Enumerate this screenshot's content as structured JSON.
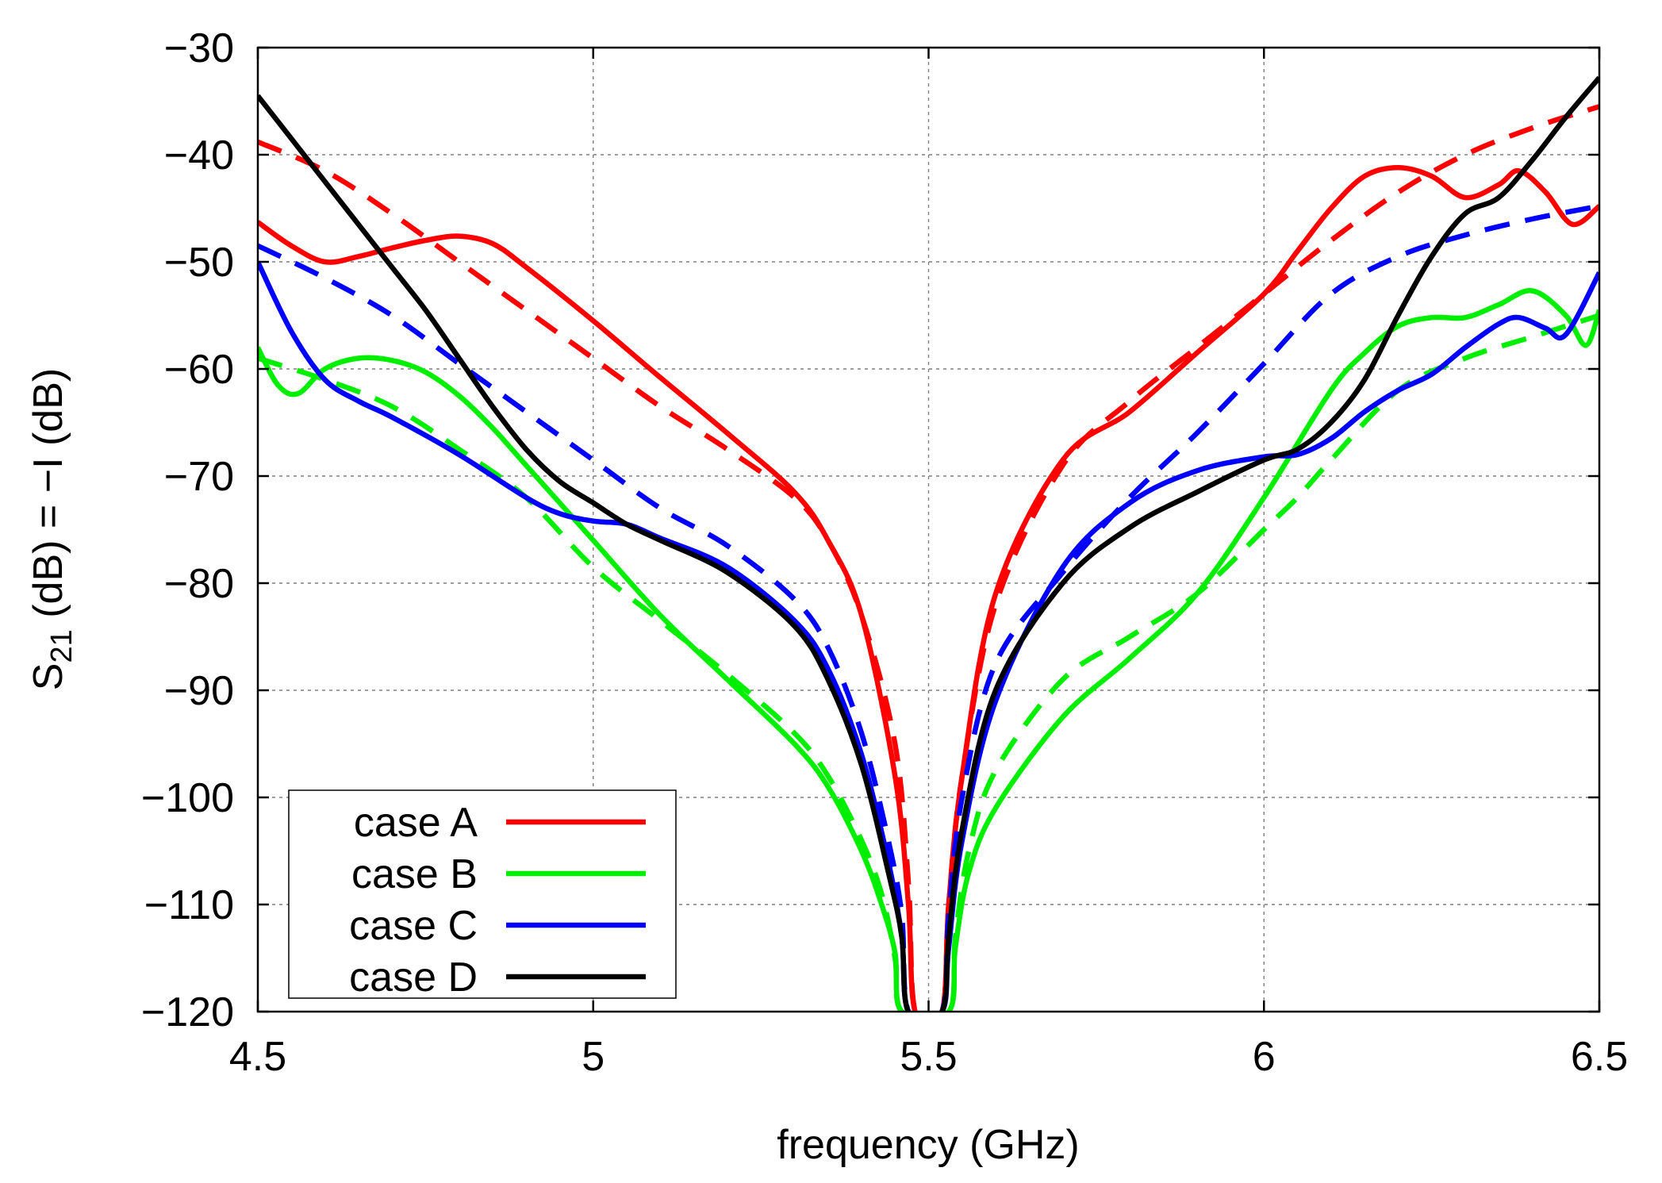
{
  "chart_data": {
    "type": "line",
    "xlabel": "frequency (GHz)",
    "ylabel": {
      "main": "S",
      "sub": "21",
      "rest": " (dB) = −I (dB)"
    },
    "xlim": [
      4.5,
      6.5
    ],
    "ylim": [
      -120,
      -30
    ],
    "xticks": [
      4.5,
      5,
      5.5,
      6,
      6.5
    ],
    "xtick_labels": [
      "4.5",
      "5",
      "5.5",
      "6",
      "6.5"
    ],
    "yticks": [
      -30,
      -40,
      -50,
      -60,
      -70,
      -80,
      -90,
      -100,
      -110,
      -120
    ],
    "ytick_labels": [
      "−30",
      "−40",
      "−50",
      "−60",
      "−70",
      "−80",
      "−90",
      "−100",
      "−110",
      "−120"
    ],
    "grid": true,
    "legend_position": "bottom-left",
    "colors": {
      "case A": "#ff0000",
      "case B": "#00ee00",
      "case C": "#0000ff",
      "case D": "#000000"
    },
    "legend": [
      "case A",
      "case B",
      "case C",
      "case D"
    ],
    "series": [
      {
        "name": "case A dashed",
        "legend": "case A",
        "style": "dashed",
        "x": [
          4.5,
          4.6,
          4.7,
          4.8,
          4.9,
          5.0,
          5.1,
          5.2,
          5.3,
          5.35,
          5.4,
          5.45,
          5.47,
          5.48,
          5.52,
          5.53,
          5.55,
          5.6,
          5.7,
          5.8,
          5.9,
          6.0,
          6.1,
          6.2,
          6.3,
          6.4,
          6.5
        ],
        "y": [
          -38.8,
          -41.5,
          -45.5,
          -50.0,
          -54.5,
          -59.0,
          -63.5,
          -67.5,
          -72.0,
          -76.0,
          -83.0,
          -95.0,
          -108.0,
          -120.0,
          -120.0,
          -110.0,
          -98.0,
          -82.0,
          -69.0,
          -63.0,
          -58.0,
          -53.0,
          -48.0,
          -43.5,
          -40.0,
          -37.5,
          -35.5
        ]
      },
      {
        "name": "case A",
        "legend": "case A",
        "style": "solid",
        "x": [
          4.5,
          4.55,
          4.6,
          4.65,
          4.7,
          4.75,
          4.8,
          4.85,
          4.9,
          5.0,
          5.1,
          5.2,
          5.3,
          5.35,
          5.4,
          5.45,
          5.47,
          5.48,
          5.52,
          5.53,
          5.55,
          5.6,
          5.7,
          5.8,
          5.9,
          6.0,
          6.05,
          6.1,
          6.15,
          6.2,
          6.25,
          6.3,
          6.35,
          6.38,
          6.42,
          6.46,
          6.5
        ],
        "y": [
          -46.3,
          -48.5,
          -50.0,
          -49.5,
          -48.7,
          -48.0,
          -47.6,
          -48.3,
          -50.5,
          -55.5,
          -60.8,
          -66.0,
          -71.5,
          -76.0,
          -83.0,
          -98.0,
          -110.0,
          -120.0,
          -120.0,
          -110.0,
          -98.0,
          -81.0,
          -68.5,
          -64.0,
          -58.5,
          -53.0,
          -49.0,
          -45.0,
          -42.0,
          -41.2,
          -42.0,
          -44.0,
          -42.8,
          -41.5,
          -43.5,
          -46.5,
          -44.8
        ]
      },
      {
        "name": "case B dashed",
        "legend": "case B",
        "style": "dashed",
        "x": [
          4.5,
          4.6,
          4.7,
          4.8,
          4.9,
          5.0,
          5.1,
          5.2,
          5.3,
          5.35,
          5.4,
          5.43,
          5.45,
          5.46,
          5.53,
          5.54,
          5.56,
          5.6,
          5.7,
          5.8,
          5.9,
          6.0,
          6.05,
          6.1,
          6.2,
          6.3,
          6.4,
          6.5
        ],
        "y": [
          -59.0,
          -61.0,
          -63.5,
          -67.5,
          -72.0,
          -78.5,
          -83.5,
          -88.5,
          -94.0,
          -98.0,
          -104.0,
          -109.0,
          -115.0,
          -120.0,
          -120.0,
          -113.0,
          -105.0,
          -97.5,
          -89.0,
          -85.0,
          -81.0,
          -75.0,
          -72.0,
          -68.5,
          -62.0,
          -59.0,
          -57.0,
          -55.0
        ]
      },
      {
        "name": "case B",
        "legend": "case B",
        "style": "solid",
        "x": [
          4.5,
          4.53,
          4.56,
          4.6,
          4.65,
          4.7,
          4.75,
          4.8,
          4.85,
          4.9,
          5.0,
          5.1,
          5.2,
          5.3,
          5.35,
          5.4,
          5.43,
          5.45,
          5.46,
          5.53,
          5.54,
          5.56,
          5.6,
          5.7,
          5.8,
          5.9,
          6.0,
          6.1,
          6.15,
          6.2,
          6.25,
          6.3,
          6.35,
          6.4,
          6.45,
          6.48,
          6.5
        ],
        "y": [
          -58.0,
          -61.5,
          -62.3,
          -60.0,
          -59.0,
          -59.2,
          -60.3,
          -62.5,
          -65.5,
          -69.0,
          -76.0,
          -83.0,
          -89.0,
          -95.0,
          -99.0,
          -105.0,
          -110.0,
          -114.5,
          -120.0,
          -120.0,
          -114.0,
          -107.0,
          -101.0,
          -92.5,
          -87.0,
          -81.0,
          -72.0,
          -62.0,
          -58.5,
          -56.0,
          -55.2,
          -55.2,
          -54.0,
          -52.7,
          -55.0,
          -57.8,
          -54.5
        ]
      },
      {
        "name": "case C dashed",
        "legend": "case C",
        "style": "dashed",
        "x": [
          4.5,
          4.6,
          4.7,
          4.8,
          4.9,
          5.0,
          5.1,
          5.2,
          5.3,
          5.35,
          5.4,
          5.44,
          5.46,
          5.47,
          5.52,
          5.53,
          5.55,
          5.6,
          5.7,
          5.8,
          5.9,
          6.0,
          6.1,
          6.2,
          6.3,
          6.4,
          6.5
        ],
        "y": [
          -48.5,
          -51.5,
          -55.0,
          -59.5,
          -64.0,
          -68.5,
          -73.0,
          -76.5,
          -81.5,
          -86.0,
          -94.0,
          -104.0,
          -111.0,
          -120.0,
          -120.0,
          -111.0,
          -100.0,
          -87.5,
          -79.0,
          -72.0,
          -66.0,
          -59.5,
          -53.0,
          -49.5,
          -47.5,
          -46.0,
          -44.8
        ]
      },
      {
        "name": "case C",
        "legend": "case C",
        "style": "solid",
        "x": [
          4.5,
          4.55,
          4.6,
          4.65,
          4.7,
          4.8,
          4.9,
          4.95,
          5.0,
          5.05,
          5.1,
          5.2,
          5.3,
          5.35,
          5.4,
          5.44,
          5.46,
          5.47,
          5.52,
          5.53,
          5.55,
          5.6,
          5.7,
          5.8,
          5.9,
          6.0,
          6.05,
          6.1,
          6.15,
          6.2,
          6.25,
          6.3,
          6.35,
          6.38,
          6.42,
          6.45,
          6.5
        ],
        "y": [
          -50.0,
          -56.5,
          -61.0,
          -63.0,
          -64.5,
          -68.0,
          -72.0,
          -73.5,
          -74.2,
          -74.5,
          -75.8,
          -78.5,
          -83.5,
          -88.0,
          -96.0,
          -106.0,
          -113.0,
          -120.0,
          -120.0,
          -114.0,
          -104.0,
          -91.0,
          -78.5,
          -72.5,
          -69.5,
          -68.2,
          -68.0,
          -66.5,
          -64.0,
          -62.0,
          -60.5,
          -58.0,
          -55.8,
          -55.2,
          -56.2,
          -56.8,
          -51.0
        ]
      },
      {
        "name": "case D",
        "legend": "case D",
        "style": "solid",
        "x": [
          4.5,
          4.55,
          4.6,
          4.65,
          4.7,
          4.75,
          4.8,
          4.85,
          4.9,
          4.95,
          5.0,
          5.05,
          5.1,
          5.2,
          5.3,
          5.35,
          5.4,
          5.44,
          5.46,
          5.47,
          5.52,
          5.53,
          5.55,
          5.6,
          5.7,
          5.8,
          5.9,
          6.0,
          6.05,
          6.1,
          6.15,
          6.2,
          6.25,
          6.3,
          6.35,
          6.4,
          6.45,
          6.5
        ],
        "y": [
          -34.5,
          -38.5,
          -42.5,
          -46.5,
          -50.5,
          -54.5,
          -59.0,
          -63.5,
          -67.5,
          -70.5,
          -72.5,
          -74.5,
          -76.0,
          -79.0,
          -84.0,
          -89.0,
          -97.0,
          -107.0,
          -113.0,
          -120.0,
          -120.0,
          -113.0,
          -103.0,
          -90.0,
          -80.0,
          -74.8,
          -71.5,
          -68.5,
          -67.5,
          -65.0,
          -61.0,
          -55.0,
          -49.5,
          -45.5,
          -44.0,
          -40.5,
          -36.5,
          -32.8
        ]
      }
    ]
  }
}
